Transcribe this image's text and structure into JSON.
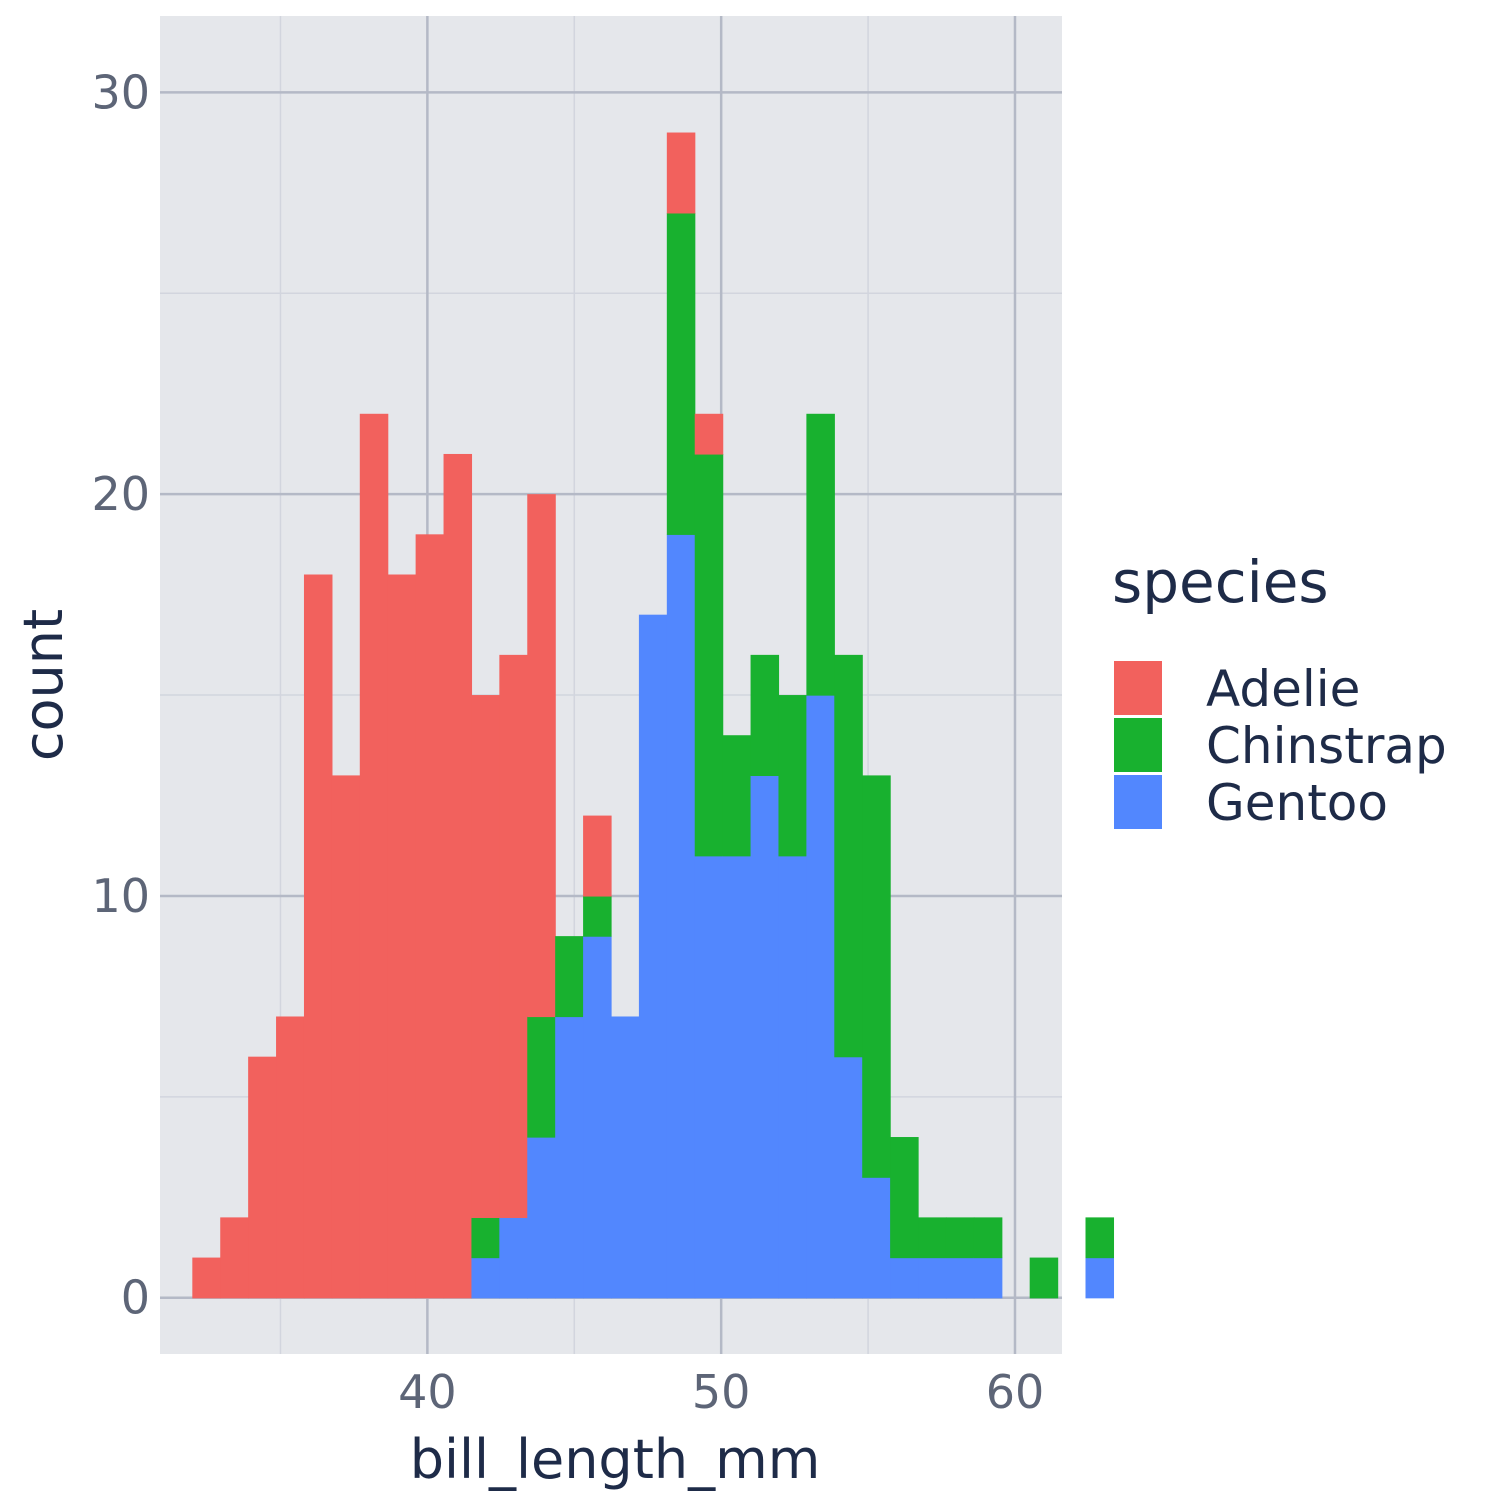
{
  "chart_data": {
    "type": "bar",
    "subtype": "stacked-histogram",
    "xlabel": "bill_length_mm",
    "ylabel": "count",
    "xlim": [
      30.9,
      61.6
    ],
    "ylim": [
      -1.4,
      31.9
    ],
    "x_ticks": [
      40,
      50,
      60
    ],
    "y_ticks": [
      0,
      10,
      20,
      30
    ],
    "grid": true,
    "bin_start": 32,
    "bin_width": 0.95,
    "colors": {
      "panel": "#e5e7eb",
      "grid_major": "#b4b9c6",
      "grid_minor": "#d2d5de"
    },
    "legend": {
      "title": "species",
      "position": "right"
    },
    "series": [
      {
        "name": "Adelie",
        "color": "#f2615d",
        "values": [
          1,
          2,
          6,
          7,
          18,
          13,
          22,
          18,
          19,
          21,
          13,
          14,
          13,
          0,
          2,
          0,
          0,
          2,
          1,
          0,
          0,
          0,
          0,
          0,
          0,
          0,
          0,
          0,
          0,
          0,
          0,
          0,
          0,
          0,
          0
        ]
      },
      {
        "name": "Chinstrap",
        "color": "#18b12f",
        "values": [
          0,
          0,
          0,
          0,
          0,
          0,
          0,
          0,
          0,
          0,
          1,
          0,
          3,
          2,
          1,
          0,
          0,
          8,
          10,
          3,
          3,
          4,
          7,
          10,
          10,
          3,
          1,
          1,
          1,
          0,
          1,
          0,
          1,
          0,
          0
        ]
      },
      {
        "name": "Gentoo",
        "color": "#5287fe",
        "values": [
          0,
          0,
          0,
          0,
          0,
          0,
          0,
          0,
          0,
          0,
          1,
          2,
          4,
          7,
          9,
          7,
          17,
          19,
          11,
          11,
          13,
          11,
          15,
          6,
          3,
          1,
          1,
          1,
          1,
          0,
          0,
          0,
          1,
          0,
          0
        ]
      }
    ]
  }
}
